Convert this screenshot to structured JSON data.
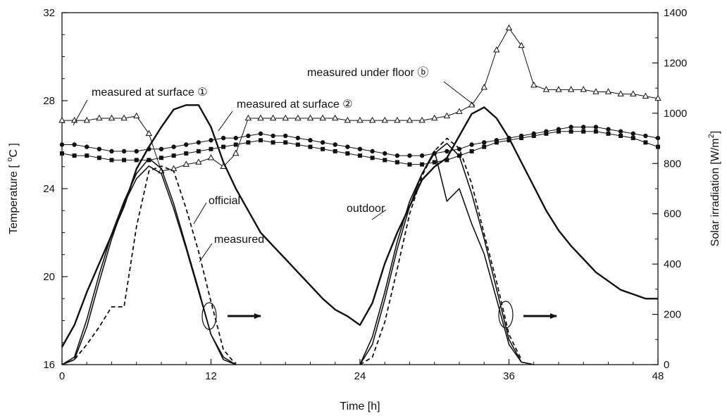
{
  "chart_data": {
    "type": "line",
    "title": "",
    "xlabel": "Time [h]",
    "ylabel_left": "Temperature [ °C ]",
    "ylabel_left_parts": {
      "base": "Temperature [ ",
      "sup": "o",
      "unit": "C ]"
    },
    "ylabel_right": "Solar irradiation [W/m²]",
    "ylabel_right_parts": {
      "base": "Solar irradiation [W/m",
      "sup": "2",
      "end": "]"
    },
    "xlim": [
      0,
      48
    ],
    "ylim_left": [
      16,
      32
    ],
    "ylim_right": [
      0,
      1400
    ],
    "xticks": [
      0,
      12,
      24,
      36,
      48
    ],
    "yticks_left": [
      16,
      20,
      24,
      28,
      32
    ],
    "yticks_right": [
      0,
      200,
      400,
      600,
      800,
      1000,
      1200,
      1400
    ],
    "grid": false,
    "legend": "none",
    "series": [
      {
        "name": "measured under floor ⓑ",
        "axis": "left",
        "marker": "open-triangle",
        "x": [
          0,
          1,
          2,
          3,
          4,
          5,
          6,
          7,
          8,
          9,
          10,
          11,
          12,
          13,
          14,
          15,
          16,
          17,
          18,
          19,
          20,
          21,
          22,
          23,
          24,
          25,
          26,
          27,
          28,
          29,
          30,
          31,
          32,
          33,
          34,
          35,
          36,
          37,
          38,
          39,
          40,
          41,
          42,
          43,
          44,
          45,
          46,
          47,
          48
        ],
        "values": [
          27.1,
          27.1,
          27.1,
          27.2,
          27.2,
          27.2,
          27.3,
          26.5,
          24.8,
          24.9,
          25.1,
          25.2,
          25.4,
          25.0,
          25.6,
          27.2,
          27.2,
          27.2,
          27.2,
          27.2,
          27.2,
          27.2,
          27.2,
          27.1,
          27.1,
          27.1,
          27.1,
          27.1,
          27.1,
          27.1,
          27.2,
          27.3,
          27.5,
          27.8,
          28.6,
          30.3,
          31.3,
          30.5,
          28.7,
          28.5,
          28.5,
          28.5,
          28.5,
          28.4,
          28.4,
          28.3,
          28.3,
          28.2,
          28.1
        ]
      },
      {
        "name": "measured at surface ①",
        "axis": "left",
        "marker": "filled-circle",
        "x": [
          0,
          1,
          2,
          3,
          4,
          5,
          6,
          7,
          8,
          9,
          10,
          11,
          12,
          13,
          14,
          15,
          16,
          17,
          18,
          19,
          20,
          21,
          22,
          23,
          24,
          25,
          26,
          27,
          28,
          29,
          30,
          31,
          32,
          33,
          34,
          35,
          36,
          37,
          38,
          39,
          40,
          41,
          42,
          43,
          44,
          45,
          46,
          47,
          48
        ],
        "values": [
          26.0,
          26.0,
          25.9,
          25.8,
          25.7,
          25.7,
          25.7,
          25.8,
          25.8,
          25.9,
          26.0,
          26.1,
          26.2,
          26.3,
          26.3,
          26.4,
          26.5,
          26.4,
          26.4,
          26.3,
          26.2,
          26.1,
          26.0,
          25.9,
          25.8,
          25.7,
          25.6,
          25.5,
          25.5,
          25.5,
          25.6,
          25.7,
          25.8,
          26.0,
          26.1,
          26.2,
          26.3,
          26.4,
          26.5,
          26.6,
          26.7,
          26.8,
          26.8,
          26.8,
          26.7,
          26.6,
          26.5,
          26.4,
          26.3
        ]
      },
      {
        "name": "measured at surface ②",
        "axis": "left",
        "marker": "filled-square",
        "x": [
          0,
          1,
          2,
          3,
          4,
          5,
          6,
          7,
          8,
          9,
          10,
          11,
          12,
          13,
          14,
          15,
          16,
          17,
          18,
          19,
          20,
          21,
          22,
          23,
          24,
          25,
          26,
          27,
          28,
          29,
          30,
          31,
          32,
          33,
          34,
          35,
          36,
          37,
          38,
          39,
          40,
          41,
          42,
          43,
          44,
          45,
          46,
          47,
          48
        ],
        "values": [
          25.6,
          25.5,
          25.5,
          25.4,
          25.3,
          25.3,
          25.3,
          25.3,
          25.4,
          25.5,
          25.6,
          25.7,
          25.8,
          25.9,
          26.0,
          26.1,
          26.2,
          26.1,
          26.1,
          26.0,
          25.9,
          25.8,
          25.7,
          25.6,
          25.5,
          25.4,
          25.3,
          25.2,
          25.1,
          25.1,
          25.2,
          25.3,
          25.5,
          25.7,
          25.9,
          26.1,
          26.2,
          26.3,
          26.4,
          26.5,
          26.6,
          26.6,
          26.6,
          26.6,
          26.5,
          26.4,
          26.3,
          26.1,
          25.9
        ]
      },
      {
        "name": "outdoor",
        "axis": "left",
        "marker": "none",
        "style": "solid-thick",
        "x": [
          0,
          1,
          2,
          3,
          4,
          5,
          6,
          7,
          8,
          9,
          10,
          11,
          12,
          13,
          14,
          15,
          16,
          17,
          18,
          19,
          20,
          21,
          22,
          23,
          24,
          25,
          26,
          27,
          28,
          29,
          30,
          31,
          32,
          33,
          34,
          35,
          36,
          37,
          38,
          39,
          40,
          41,
          42,
          43,
          44,
          45,
          46,
          47,
          48
        ],
        "values": [
          16.8,
          17.8,
          19.3,
          20.6,
          21.9,
          23.2,
          24.9,
          25.9,
          26.8,
          27.6,
          27.8,
          27.8,
          26.8,
          25.2,
          24.0,
          23.0,
          22.0,
          21.4,
          20.8,
          20.2,
          19.6,
          19.0,
          18.5,
          18.2,
          17.8,
          18.8,
          20.6,
          22.0,
          23.2,
          24.4,
          25.0,
          25.4,
          26.4,
          27.4,
          27.7,
          27.2,
          26.3,
          25.2,
          24.1,
          23.0,
          22.1,
          21.4,
          20.8,
          20.2,
          19.8,
          19.4,
          19.2,
          19.0,
          19.0
        ]
      },
      {
        "name": "official",
        "axis": "right",
        "marker": "none",
        "style": "solid-thin",
        "x": [
          0,
          1,
          2,
          3,
          4,
          5,
          6,
          7,
          8,
          9,
          10,
          11,
          12,
          13,
          14,
          24,
          25,
          26,
          27,
          28,
          29,
          30,
          31,
          32,
          33,
          34,
          35,
          36,
          37,
          38
        ],
        "values": [
          0,
          30,
          180,
          360,
          520,
          650,
          760,
          820,
          780,
          640,
          470,
          300,
          120,
          30,
          0,
          0,
          110,
          290,
          490,
          650,
          760,
          850,
          650,
          700,
          560,
          440,
          260,
          80,
          10,
          0
        ]
      },
      {
        "name": "measured",
        "axis": "right",
        "marker": "none",
        "style": "solid-thin",
        "x": [
          0,
          1,
          2,
          3,
          4,
          5,
          6,
          7,
          8,
          9,
          10,
          11,
          12,
          13,
          14,
          24,
          25,
          26,
          27,
          28,
          29,
          30,
          31,
          32,
          33,
          34,
          35,
          36,
          37,
          38
        ],
        "values": [
          0,
          20,
          150,
          330,
          500,
          640,
          740,
          790,
          760,
          620,
          460,
          290,
          120,
          20,
          0,
          0,
          80,
          260,
          460,
          630,
          760,
          840,
          880,
          830,
          680,
          500,
          300,
          100,
          10,
          0
        ]
      },
      {
        "name": "measured (dashed)",
        "axis": "right",
        "marker": "none",
        "style": "dashed",
        "x": [
          0,
          1,
          2,
          3,
          4,
          5,
          6,
          7,
          8,
          9,
          10,
          11,
          12,
          13,
          14,
          24,
          25,
          26,
          27,
          28,
          29,
          30,
          31,
          32,
          33,
          34,
          35,
          36,
          37
        ],
        "values": [
          0,
          20,
          80,
          150,
          230,
          230,
          550,
          770,
          790,
          770,
          620,
          450,
          250,
          60,
          0,
          0,
          30,
          170,
          380,
          600,
          750,
          850,
          900,
          860,
          720,
          520,
          330,
          120,
          20
        ]
      }
    ],
    "annotations": [
      "measured at surface ①",
      "measured at surface ②",
      "measured under floor ⓑ",
      "official",
      "measured",
      "outdoor"
    ]
  }
}
